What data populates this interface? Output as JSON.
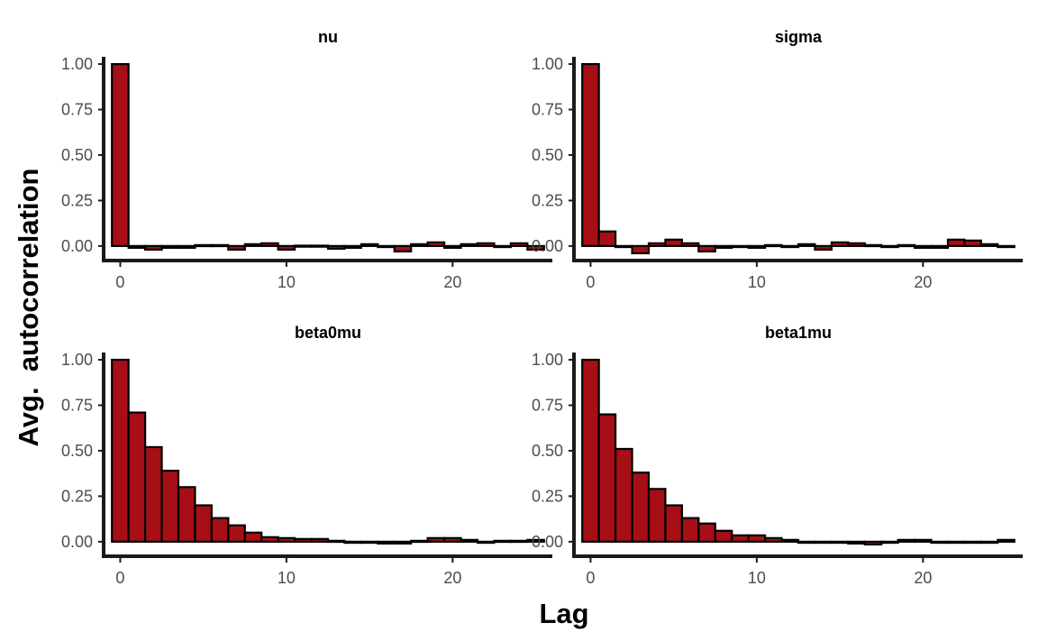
{
  "chart_data": {
    "type": "bar",
    "xlabel": "Lag",
    "ylabel": "Avg.  autocorrelation",
    "xlim": [
      -1,
      26
    ],
    "ylim": [
      -0.08,
      1.04
    ],
    "x_ticks": [
      0,
      10,
      20
    ],
    "y_ticks": [
      0.0,
      0.25,
      0.5,
      0.75,
      1.0
    ],
    "y_tick_labels": [
      "0.00",
      "0.25",
      "0.50",
      "0.75",
      "1.00"
    ],
    "lags": [
      0,
      1,
      2,
      3,
      4,
      5,
      6,
      7,
      8,
      9,
      10,
      11,
      12,
      13,
      14,
      15,
      16,
      17,
      18,
      19,
      20,
      21,
      22,
      23,
      24,
      25
    ],
    "bar_color": "#A50F15",
    "panels": [
      {
        "title": "nu",
        "values": [
          1.0,
          -0.01,
          -0.02,
          -0.01,
          -0.01,
          0.005,
          0.005,
          -0.02,
          0.01,
          0.015,
          -0.02,
          0.002,
          0.002,
          -0.015,
          -0.01,
          0.01,
          -0.005,
          -0.03,
          0.01,
          0.02,
          -0.01,
          0.01,
          0.015,
          -0.005,
          0.015,
          -0.02
        ]
      },
      {
        "title": "sigma",
        "values": [
          1.0,
          0.08,
          0.0,
          -0.04,
          0.015,
          0.035,
          0.015,
          -0.03,
          -0.01,
          0.0,
          -0.01,
          0.005,
          0.0,
          0.01,
          -0.02,
          0.02,
          0.015,
          0.005,
          0.0,
          0.005,
          -0.01,
          -0.01,
          0.035,
          0.03,
          0.01,
          -0.005
        ]
      },
      {
        "title": "beta0mu",
        "values": [
          1.0,
          0.71,
          0.52,
          0.39,
          0.3,
          0.2,
          0.13,
          0.09,
          0.05,
          0.025,
          0.02,
          0.015,
          0.015,
          0.005,
          0.0,
          -0.005,
          -0.01,
          -0.01,
          0.005,
          0.02,
          0.02,
          0.01,
          0.0,
          0.005,
          0.005,
          0.01
        ]
      },
      {
        "title": "beta1mu",
        "values": [
          1.0,
          0.7,
          0.51,
          0.38,
          0.29,
          0.2,
          0.13,
          0.1,
          0.06,
          0.035,
          0.035,
          0.02,
          0.01,
          0.0,
          0.0,
          0.0,
          -0.01,
          -0.015,
          0.0,
          0.01,
          0.01,
          0.0,
          -0.005,
          0.0,
          0.0,
          0.01
        ]
      }
    ]
  }
}
